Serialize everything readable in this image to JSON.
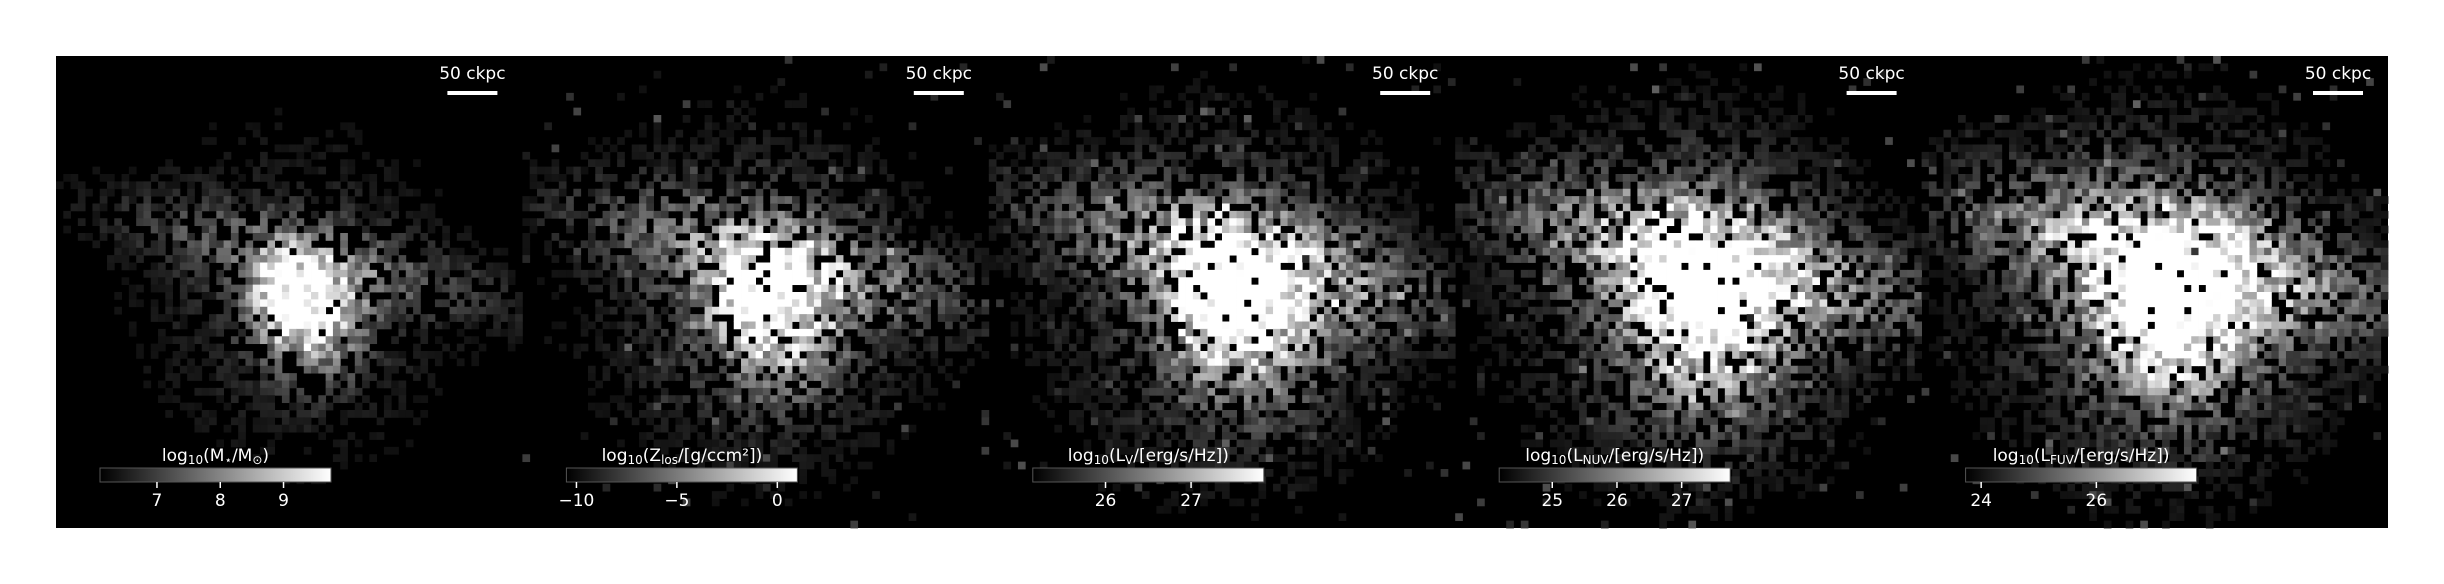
{
  "chart_data": [
    {
      "type": "image",
      "scale_label": "50 ckpc",
      "colorbar": {
        "label": [
          "log",
          "10",
          "(M",
          "⋆",
          "/M",
          "⊙",
          ")"
        ],
        "xlim": [
          6.1,
          9.75
        ],
        "xticks": [
          7,
          8,
          9
        ]
      }
    },
    {
      "type": "image",
      "scale_label": "50 ckpc",
      "colorbar": {
        "label": [
          "log",
          "10",
          "(Z",
          "los",
          "/[g/ccm²])"
        ],
        "xlim": [
          -10.5,
          1.0
        ],
        "xticks": [
          {
            "value": -10,
            "label": "−10"
          },
          {
            "value": -5,
            "label": "−5"
          },
          0
        ]
      }
    },
    {
      "type": "image",
      "scale_label": "50 ckpc",
      "colorbar": {
        "label": [
          "log",
          "10",
          "(L",
          "V",
          "/[erg/s/Hz])"
        ],
        "xlim": [
          25.15,
          27.85
        ],
        "xticks": [
          26,
          27
        ]
      }
    },
    {
      "type": "image",
      "scale_label": "50 ckpc",
      "colorbar": {
        "label": [
          "log",
          "10",
          "(L",
          "NUV",
          "/[erg/s/Hz])"
        ],
        "xlim": [
          24.18,
          27.75
        ],
        "xticks": [
          25,
          26,
          27
        ]
      }
    },
    {
      "type": "image",
      "scale_label": "50 ckpc",
      "colorbar": {
        "label": [
          "log",
          "10",
          "(L",
          "FUV",
          "/[erg/s/Hz])"
        ],
        "xlim": [
          23.73,
          27.74
        ],
        "xticks": [
          24,
          26
        ]
      }
    }
  ]
}
